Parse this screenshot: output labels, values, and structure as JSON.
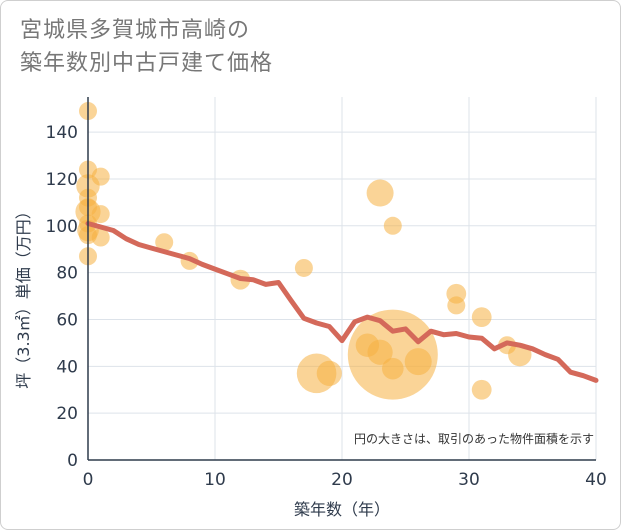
{
  "title_line1": "宮城県多賀城市高崎の",
  "title_line2": "築年数別中古戸建て価格",
  "colors": {
    "bubble": "#f5b041",
    "line": "#d4695a",
    "grid": "#dde3ea",
    "axis": "#2f3b4c"
  },
  "chart_data": {
    "type": "scatter",
    "title": "宮城県多賀城市高崎の築年数別中古戸建て価格",
    "xlabel": "築年数（年）",
    "ylabel": "坪（3.3㎡）単価（万円）",
    "xlim": [
      0,
      40
    ],
    "ylim": [
      0,
      155
    ],
    "xticks": [
      0,
      10,
      20,
      30,
      40
    ],
    "yticks": [
      0,
      20,
      40,
      60,
      80,
      100,
      120,
      140
    ],
    "note": "円の大きさは、取引のあった物件面積を示す",
    "bubbles": [
      {
        "x": 0,
        "y": 149,
        "s": 1
      },
      {
        "x": 0,
        "y": 124,
        "s": 1
      },
      {
        "x": 0,
        "y": 117,
        "s": 1.3
      },
      {
        "x": 0,
        "y": 112,
        "s": 1
      },
      {
        "x": 0,
        "y": 108,
        "s": 1
      },
      {
        "x": 0,
        "y": 106,
        "s": 1.4
      },
      {
        "x": 0,
        "y": 101,
        "s": 1
      },
      {
        "x": 0,
        "y": 98,
        "s": 1.2
      },
      {
        "x": 0,
        "y": 96,
        "s": 1
      },
      {
        "x": 0,
        "y": 87,
        "s": 1
      },
      {
        "x": 1,
        "y": 121,
        "s": 1
      },
      {
        "x": 1,
        "y": 105,
        "s": 1
      },
      {
        "x": 1,
        "y": 95,
        "s": 1
      },
      {
        "x": 6,
        "y": 93,
        "s": 1
      },
      {
        "x": 8,
        "y": 85,
        "s": 1
      },
      {
        "x": 12,
        "y": 77,
        "s": 1.1
      },
      {
        "x": 17,
        "y": 82,
        "s": 1
      },
      {
        "x": 18,
        "y": 37,
        "s": 2.2
      },
      {
        "x": 19,
        "y": 37,
        "s": 1.4
      },
      {
        "x": 22,
        "y": 49,
        "s": 1.3
      },
      {
        "x": 23,
        "y": 114,
        "s": 1.5
      },
      {
        "x": 23,
        "y": 46,
        "s": 1.4
      },
      {
        "x": 24,
        "y": 100,
        "s": 1
      },
      {
        "x": 24,
        "y": 45,
        "s": 5.0
      },
      {
        "x": 24,
        "y": 39,
        "s": 1.2
      },
      {
        "x": 26,
        "y": 42,
        "s": 1.5
      },
      {
        "x": 29,
        "y": 71,
        "s": 1.1
      },
      {
        "x": 29,
        "y": 66,
        "s": 1
      },
      {
        "x": 31,
        "y": 61,
        "s": 1.1
      },
      {
        "x": 31,
        "y": 30,
        "s": 1.1
      },
      {
        "x": 33,
        "y": 49,
        "s": 1
      },
      {
        "x": 34,
        "y": 45,
        "s": 1.3
      }
    ],
    "trend": {
      "x": [
        0,
        1,
        2,
        3,
        4,
        5,
        6,
        7,
        8,
        9,
        10,
        11,
        12,
        13,
        14,
        15,
        16,
        17,
        18,
        19,
        20,
        21,
        22,
        23,
        24,
        25,
        26,
        27,
        28,
        29,
        30,
        31,
        32,
        33,
        34,
        35,
        36,
        37,
        38,
        39,
        40
      ],
      "y": [
        101,
        99.5,
        98,
        94.5,
        92,
        90.5,
        89,
        87.5,
        86,
        83.5,
        81.5,
        79.5,
        77.5,
        77,
        75,
        75.8,
        68,
        60.5,
        58.5,
        57,
        51,
        59,
        61,
        59.5,
        55,
        56,
        50.5,
        55,
        53.5,
        54,
        52.5,
        52,
        47.5,
        50,
        49,
        47.5,
        45,
        43,
        37.5,
        36,
        34
      ]
    }
  }
}
